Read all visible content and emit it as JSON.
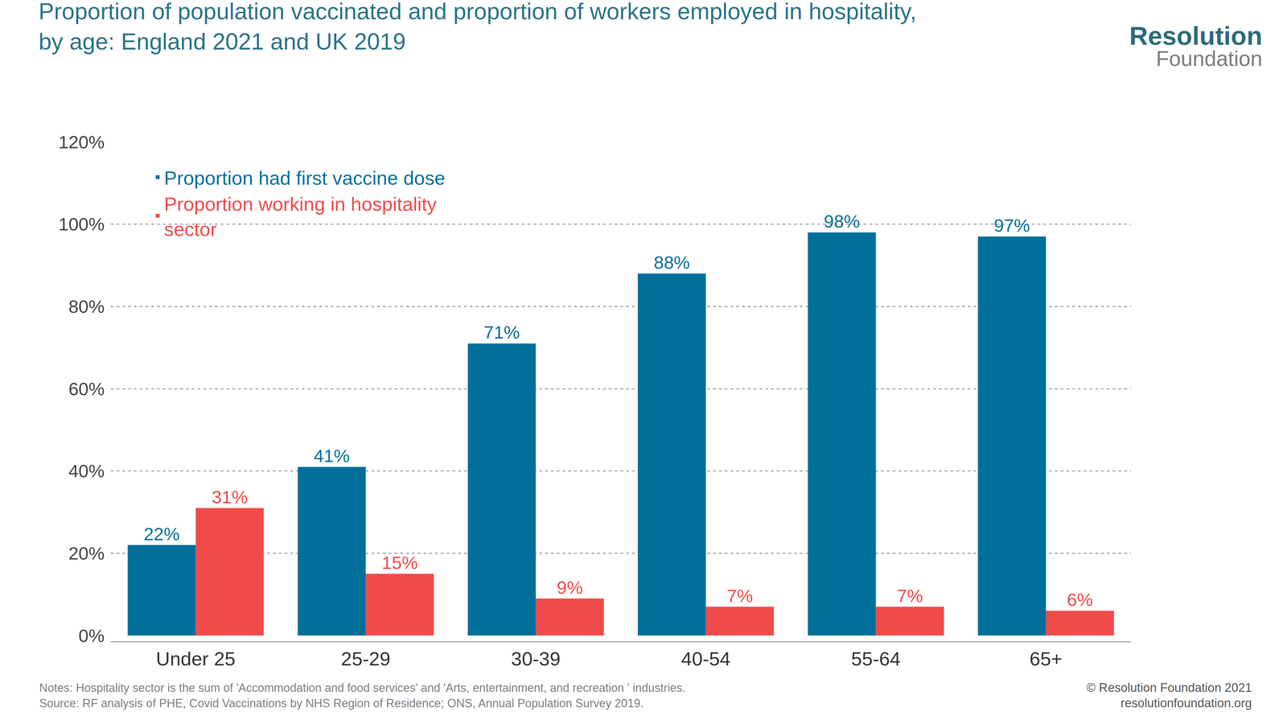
{
  "chart_data": {
    "type": "bar",
    "title": "Proportion of population vaccinated and proportion of workers employed in hospitality, by age: England 2021 and UK 2019",
    "categories": [
      "Under 25",
      "25-29",
      "30-39",
      "40-54",
      "55-64",
      "65+"
    ],
    "series": [
      {
        "name": "Proportion had first vaccine dose",
        "color": "#00709b",
        "values": [
          22,
          41,
          71,
          88,
          98,
          97
        ],
        "value_labels": [
          "22%",
          "41%",
          "71%",
          "88%",
          "98%",
          "97%"
        ]
      },
      {
        "name": "Proportion working in hospitality sector",
        "color": "#ef4b4b",
        "values": [
          31,
          15,
          9,
          7,
          7,
          6
        ],
        "value_labels": [
          "31%",
          "15%",
          "9%",
          "7%",
          "7%",
          "6%"
        ]
      }
    ],
    "ylim": [
      0,
      120
    ],
    "yticks": [
      {
        "value": 0,
        "label": "0%"
      },
      {
        "value": 20,
        "label": "20%"
      },
      {
        "value": 40,
        "label": "40%"
      },
      {
        "value": 60,
        "label": "60%"
      },
      {
        "value": 80,
        "label": "80%"
      },
      {
        "value": 100,
        "label": "100%"
      },
      {
        "value": 120,
        "label": "120%"
      }
    ],
    "grid": true,
    "legend": "top left",
    "data_labels": true,
    "notes": "Notes: Hospitality sector is the sum of 'Accommodation and food services' and 'Arts, entertainment, and recreation ' industries.",
    "source": "Source: RF analysis of PHE, Covid Vaccinations by NHS Region of Residence; ONS, Annual Population Survey 2019.",
    "copyright": "© Resolution Foundation 2021",
    "website": "resolutionfoundation.org",
    "logo": [
      "Resolution",
      "Foundation"
    ]
  }
}
